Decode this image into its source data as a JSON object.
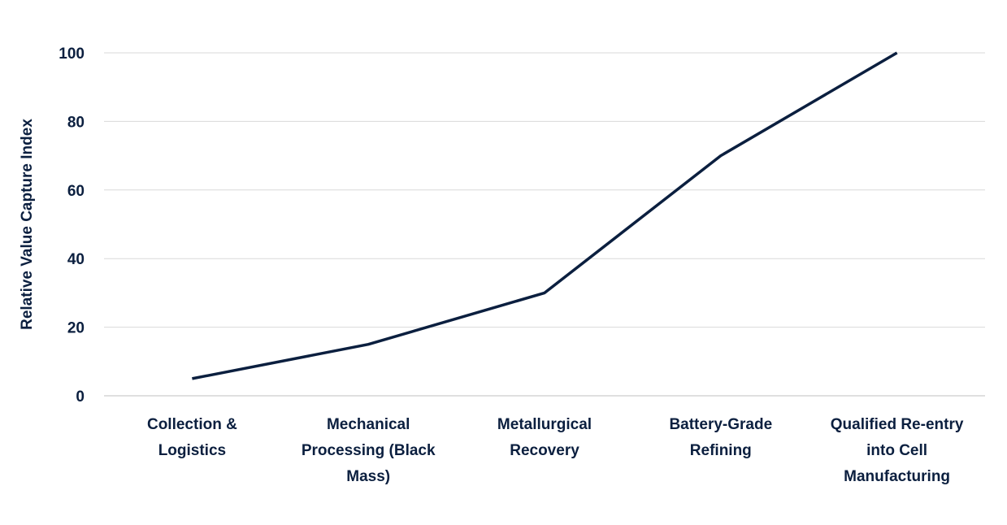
{
  "chart_data": {
    "type": "line",
    "title": "",
    "xlabel": "",
    "ylabel": "Relative Value Capture Index",
    "categories": [
      [
        "Collection &",
        "Logistics"
      ],
      [
        "Mechanical",
        "Processing (Black",
        "Mass)"
      ],
      [
        "Metallurgical",
        "Recovery"
      ],
      [
        "Battery-Grade",
        "Refining"
      ],
      [
        "Qualified Re-entry",
        "into Cell",
        "Manufacturing"
      ]
    ],
    "values": [
      5,
      15,
      30,
      70,
      100
    ],
    "ylim": [
      0,
      100
    ],
    "yticks": [
      0,
      20,
      40,
      60,
      80,
      100
    ],
    "grid": true,
    "legend": "none",
    "colors": {
      "line": "#0b1f3f",
      "grid": "#d9d9d9",
      "text": "#0b1f3f"
    }
  }
}
